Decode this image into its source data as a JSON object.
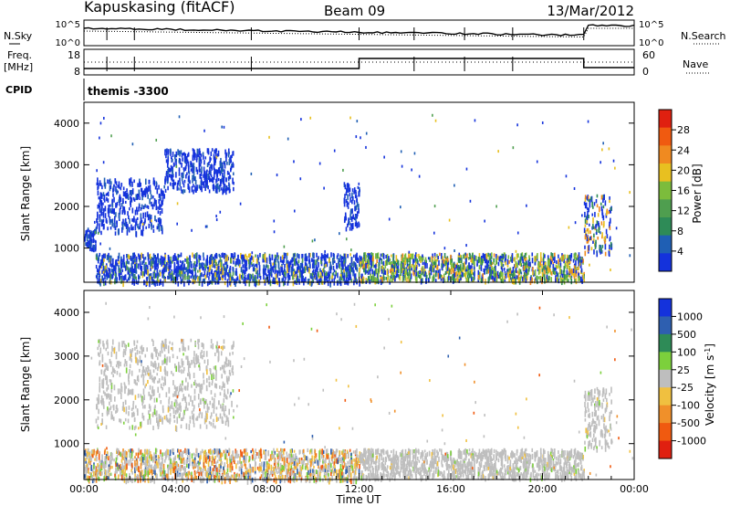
{
  "header": {
    "station": "Kapuskasing (fitACF)",
    "beam": "Beam 09",
    "date": "13/Mar/2012"
  },
  "noise_panel": {
    "left_label": "N.Sky",
    "right_label": "N.Search",
    "ticks_top": "10^5",
    "ticks_bottom": "10^0"
  },
  "freq_panel": {
    "left_label_1": "Freq.",
    "left_label_2": "[MHz]",
    "tick_top": "18",
    "tick_bottom": "8",
    "right_label": "Nave",
    "right_tick_top": "60",
    "right_tick_bottom": "0"
  },
  "cpid": {
    "label": "CPID",
    "value": "themis -3300"
  },
  "colors": {
    "power_scale": [
      "#1432dc",
      "#1f5fb4",
      "#2e8b57",
      "#4f9e4f",
      "#7cbc3c",
      "#e8c020",
      "#f08a20",
      "#f05a10",
      "#e02010"
    ],
    "velocity_scale": [
      "#1432dc",
      "#2e5fb0",
      "#2e8b57",
      "#7cd03c",
      "#bebebe",
      "#f0c040",
      "#f0902a",
      "#f05a10",
      "#e02010"
    ]
  },
  "chart_data": [
    {
      "type": "heatmap",
      "name": "power",
      "xlabel": "",
      "ylabel": "Slant Range [km]",
      "xlim": [
        0,
        24
      ],
      "ylim": [
        180,
        4500
      ],
      "yticks": [
        "1000",
        "2000",
        "3000",
        "4000"
      ],
      "colorbar_label": "Power [dB]",
      "colorbar_ticks": [
        "4",
        "8",
        "12",
        "16",
        "20",
        "24",
        "28"
      ],
      "features": [
        {
          "t_start": 0.0,
          "t_end": 0.5,
          "r_low": 1000,
          "r_high": 1500,
          "level": "weak"
        },
        {
          "t_start": 0.5,
          "t_end": 3.5,
          "r_low": 1400,
          "r_high": 2700,
          "level": "weak"
        },
        {
          "t_start": 3.5,
          "t_end": 6.5,
          "r_low": 2400,
          "r_high": 3400,
          "level": "weak"
        },
        {
          "t_start": 0.5,
          "t_end": 12.0,
          "r_low": 200,
          "r_high": 900,
          "level": "weak-moderate"
        },
        {
          "t_start": 11.3,
          "t_end": 12.0,
          "r_low": 1500,
          "r_high": 2600,
          "level": "weak"
        },
        {
          "t_start": 12.0,
          "t_end": 21.8,
          "r_low": 250,
          "r_high": 900,
          "level": "moderate"
        },
        {
          "t_start": 21.8,
          "t_end": 23.0,
          "r_low": 900,
          "r_high": 2300,
          "level": "moderate-strong"
        }
      ]
    },
    {
      "type": "heatmap",
      "name": "velocity",
      "xlabel": "Time UT",
      "ylabel": "Slant Range [km]",
      "xlim": [
        0,
        24
      ],
      "ylim": [
        180,
        4500
      ],
      "xticks": [
        "00:00",
        "04:00",
        "08:00",
        "12:00",
        "16:00",
        "20:00",
        "00:00"
      ],
      "yticks": [
        "1000",
        "2000",
        "3000",
        "4000"
      ],
      "colorbar_label": "Velocity [m s^-1]",
      "colorbar_ticks": [
        "1000",
        "500",
        "100",
        "25",
        "-25",
        "-100",
        "-500",
        "-1000"
      ],
      "features": [
        {
          "t_start": 0.5,
          "t_end": 6.5,
          "r_low": 1400,
          "r_high": 3400,
          "level": "near-zero"
        },
        {
          "t_start": 0.0,
          "t_end": 12.0,
          "r_low": 200,
          "r_high": 900,
          "level": "mixed"
        },
        {
          "t_start": 12.0,
          "t_end": 21.8,
          "r_low": 250,
          "r_high": 900,
          "level": "near-zero"
        },
        {
          "t_start": 21.8,
          "t_end": 23.0,
          "r_low": 900,
          "r_high": 2300,
          "level": "near-zero"
        }
      ]
    }
  ]
}
